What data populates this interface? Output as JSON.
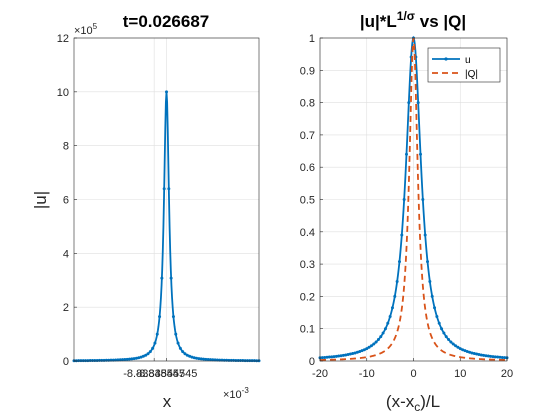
{
  "colors": {
    "u": "#0072BD",
    "Q": "#D95319",
    "grid": "#dfdfdf",
    "axis": "#262626"
  },
  "chart_data": [
    {
      "type": "line",
      "title": "t=0.026687",
      "xlabel": "x",
      "ylabel": "|u|",
      "x_exponent_label": "×10",
      "x_exponent_power": "-3",
      "y_exponent_label": "×10",
      "y_exponent_power": "5",
      "xlim": [
        -8.8384556,
        -8.8384553
      ],
      "ylim": [
        0,
        12
      ],
      "xticks": [
        {
          "value": -8.83845547,
          "label": "-8.83845547"
        },
        {
          "value": -8.83845545,
          "label": "-8.83845545"
        }
      ],
      "yticks": [
        {
          "value": 0,
          "label": "0"
        },
        {
          "value": 2,
          "label": "2"
        },
        {
          "value": 4,
          "label": "4"
        },
        {
          "value": 6,
          "label": "6"
        },
        {
          "value": 8,
          "label": "8"
        },
        {
          "value": 10,
          "label": "10"
        },
        {
          "value": 12,
          "label": "12"
        }
      ],
      "grid": true,
      "series": [
        {
          "peak": 10,
          "peak_x": -8.83845545,
          "halfwidth": 5e-09,
          "marker": "dot",
          "style": "solid"
        }
      ]
    },
    {
      "type": "line",
      "title_parts": {
        "a": "|u|*L",
        "sup": "1/σ",
        "b": " vs |Q|"
      },
      "xlabel_parts": {
        "a": "(x-x",
        "sub": "c",
        "b": ")/L"
      },
      "xlim": [
        -20,
        20
      ],
      "ylim": [
        0,
        1
      ],
      "xticks": [
        {
          "value": -20,
          "label": "-20"
        },
        {
          "value": -10,
          "label": "-10"
        },
        {
          "value": 0,
          "label": "0"
        },
        {
          "value": 10,
          "label": "10"
        },
        {
          "value": 20,
          "label": "20"
        }
      ],
      "yticks": [
        {
          "value": 0,
          "label": "0"
        },
        {
          "value": 0.1,
          "label": "0.1"
        },
        {
          "value": 0.2,
          "label": "0.2"
        },
        {
          "value": 0.3,
          "label": "0.3"
        },
        {
          "value": 0.4,
          "label": "0.4"
        },
        {
          "value": 0.5,
          "label": "0.5"
        },
        {
          "value": 0.6,
          "label": "0.6"
        },
        {
          "value": 0.7,
          "label": "0.7"
        },
        {
          "value": 0.8,
          "label": "0.8"
        },
        {
          "value": 0.9,
          "label": "0.9"
        },
        {
          "value": 1,
          "label": "1"
        }
      ],
      "grid": true,
      "legend_placement": "top-right",
      "series": [
        {
          "name": "u",
          "peak": 1,
          "halfwidth": 2.0,
          "marker": "dot",
          "style": "solid"
        },
        {
          "name": "|Q|",
          "peak": 1,
          "halfwidth": 1.1,
          "marker": "none",
          "style": "dashed"
        }
      ]
    }
  ]
}
